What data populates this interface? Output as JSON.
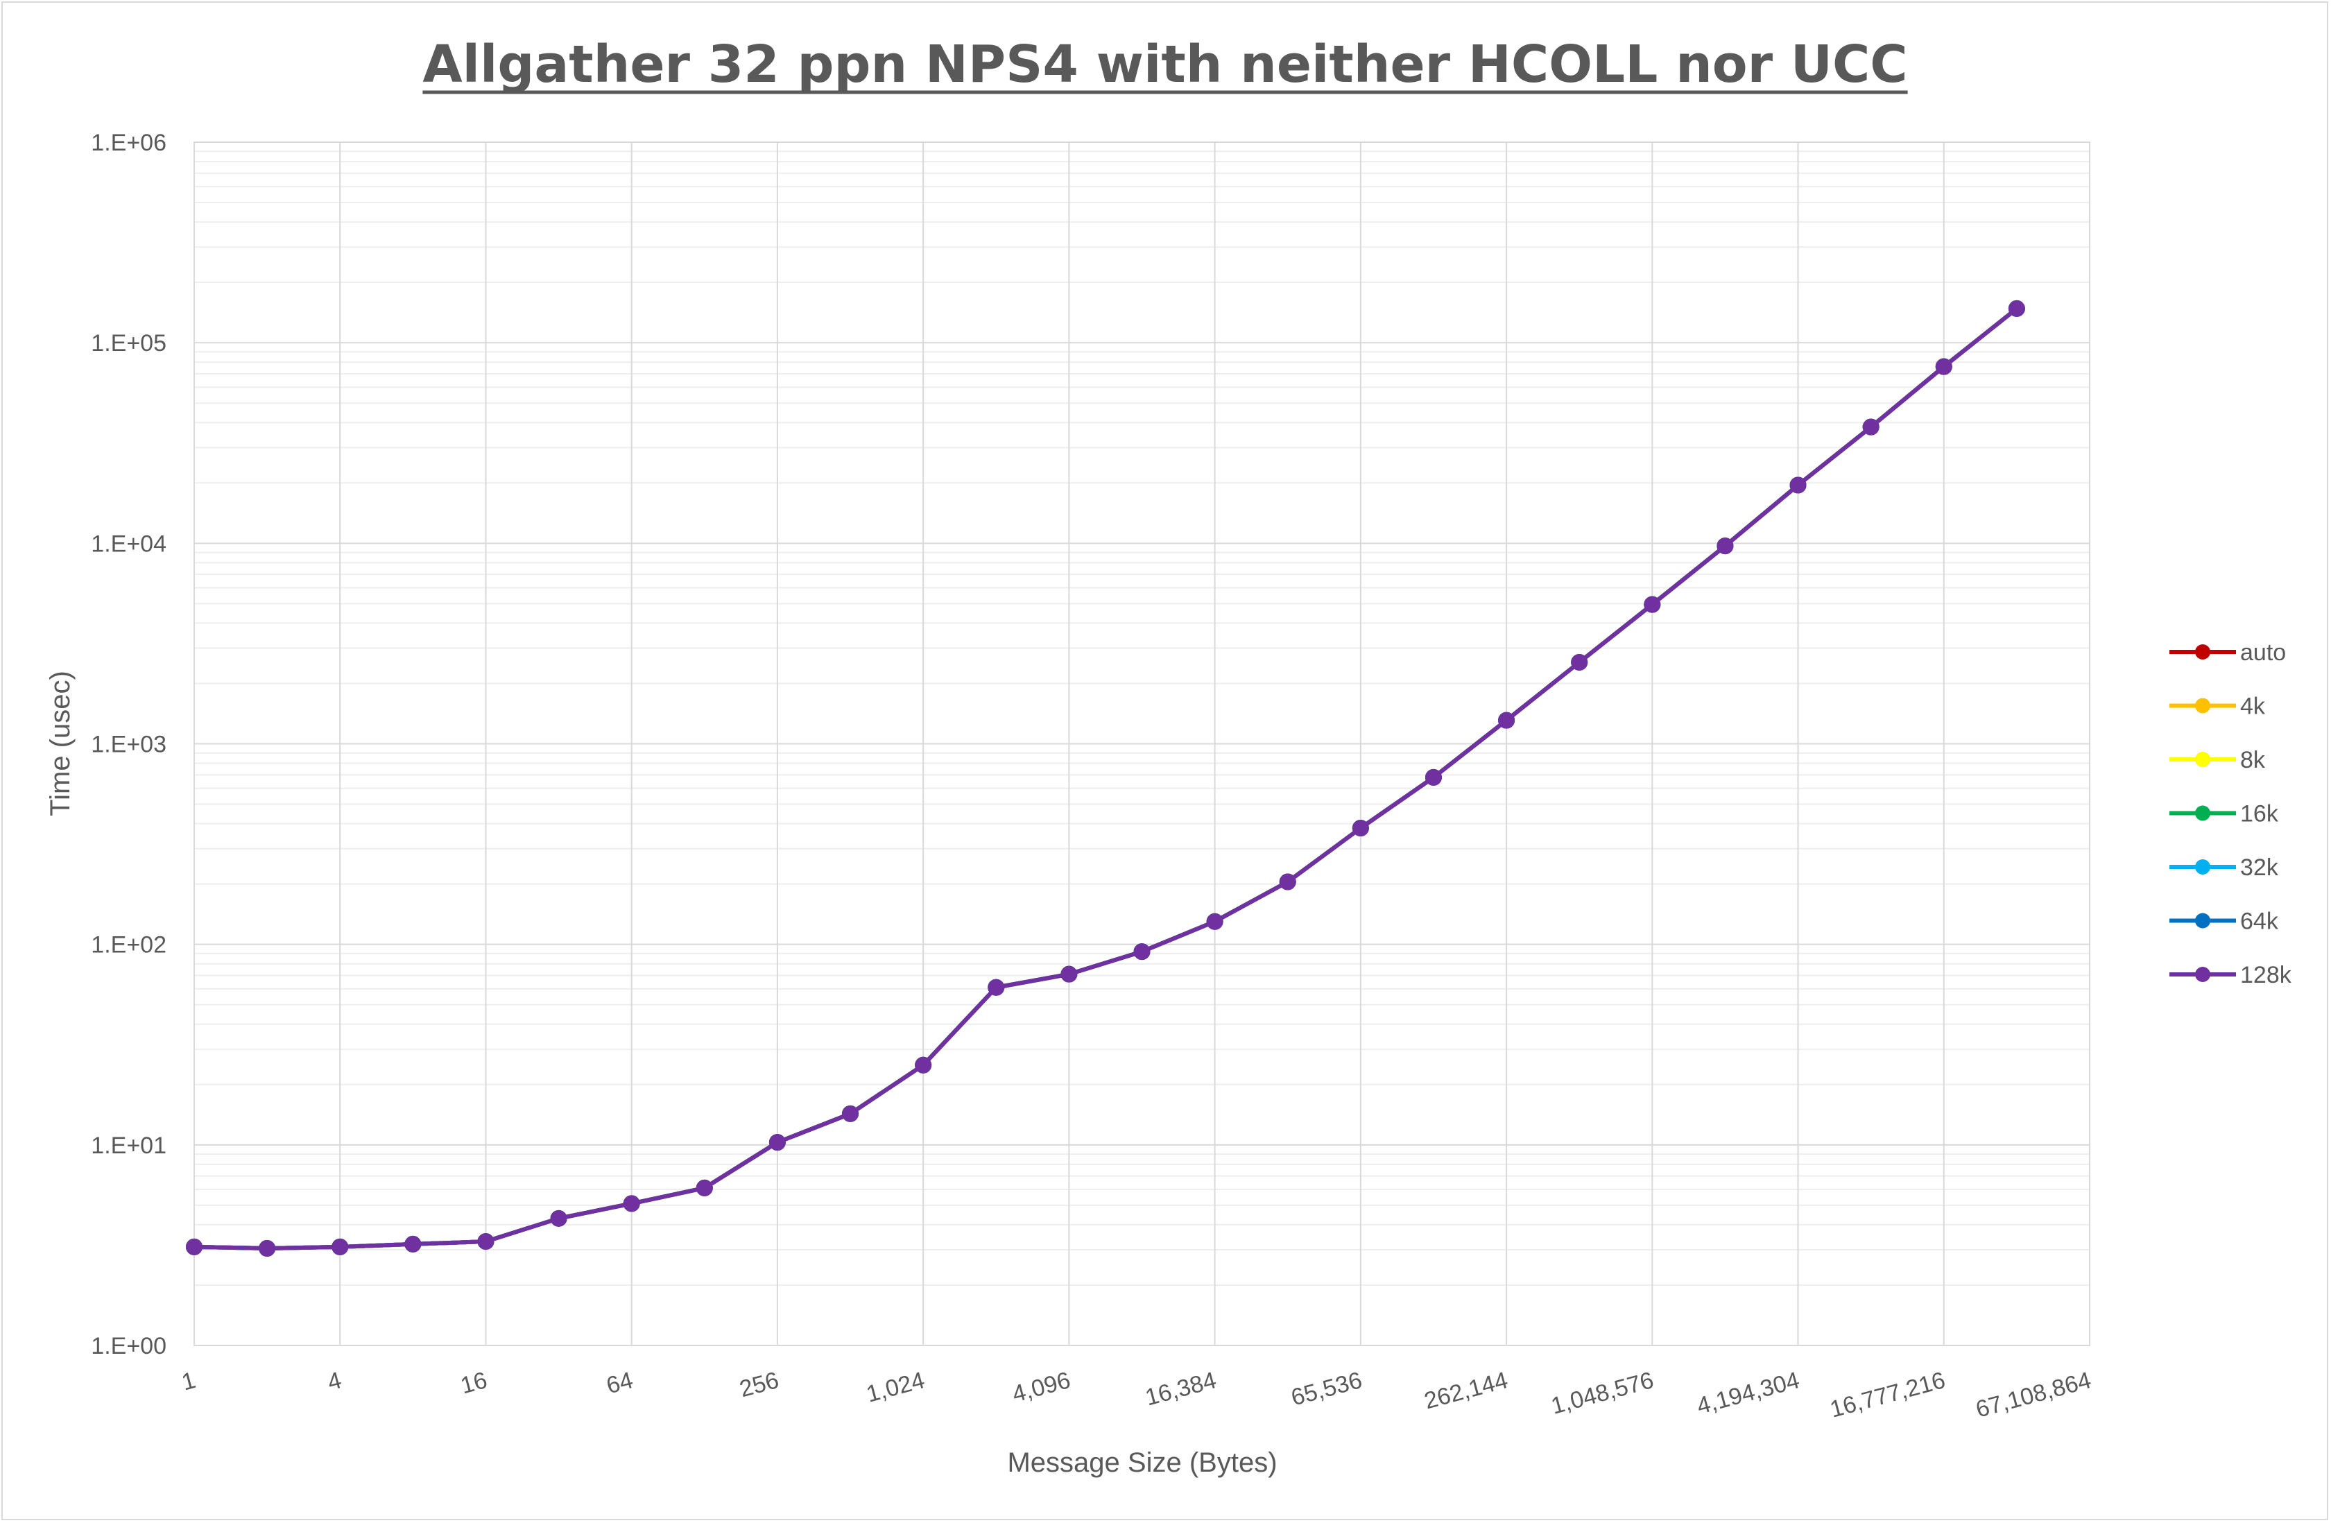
{
  "chart_data": {
    "type": "line",
    "title": "Allgather 32 ppn NPS4 with neither HCOLL nor UCC",
    "xlabel": "Message Size (Bytes)",
    "ylabel": "Time (usec)",
    "x_scale": "log2",
    "y_scale": "log10",
    "ylim": [
      1,
      1000000
    ],
    "grid": true,
    "legend_position": "right",
    "x": [
      1,
      2,
      4,
      8,
      16,
      32,
      64,
      128,
      256,
      512,
      1024,
      2048,
      4096,
      8192,
      16384,
      32768,
      65536,
      131072,
      262144,
      524288,
      1048576,
      2097152,
      4194304,
      8388608,
      16777216,
      33554432
    ],
    "x_tick_values": [
      1,
      4,
      16,
      64,
      256,
      1024,
      4096,
      16384,
      65536,
      262144,
      1048576,
      4194304,
      16777216,
      67108864
    ],
    "x_tick_labels": [
      "1",
      "4",
      "16",
      "64",
      "256",
      "1,024",
      "4,096",
      "16,384",
      "65,536",
      "262,144",
      "1,048,576",
      "4,194,304",
      "16,777,216",
      "67,108,864"
    ],
    "y_tick_values": [
      1,
      10,
      100,
      1000,
      10000,
      100000,
      1000000
    ],
    "y_tick_labels": [
      "1.E+00",
      "1.E+01",
      "1.E+02",
      "1.E+03",
      "1.E+04",
      "1.E+05",
      "1.E+06"
    ],
    "series": [
      {
        "name": "auto",
        "color": "#c00000",
        "values": [
          3.1,
          3.05,
          3.1,
          3.2,
          3.3,
          4.3,
          5.1,
          6.1,
          10.3,
          14.3,
          25,
          61,
          71,
          92,
          130,
          205,
          380,
          680,
          1310,
          2550,
          4950,
          9700,
          19500,
          38000,
          76000,
          148000
        ]
      },
      {
        "name": "4k",
        "color": "#ffc000",
        "values": [
          3.1,
          3.05,
          3.1,
          3.2,
          3.3,
          4.3,
          5.1,
          6.1,
          10.3,
          14.3,
          25,
          61,
          71,
          92,
          130,
          205,
          380,
          680,
          1310,
          2550,
          4950,
          9700,
          19500,
          38000,
          76000,
          148000
        ]
      },
      {
        "name": "8k",
        "color": "#ffff00",
        "values": [
          3.1,
          3.05,
          3.1,
          3.2,
          3.3,
          4.3,
          5.1,
          6.1,
          10.3,
          14.3,
          25,
          61,
          71,
          92,
          130,
          205,
          380,
          680,
          1310,
          2550,
          4950,
          9700,
          19500,
          38000,
          76000,
          148000
        ]
      },
      {
        "name": "16k",
        "color": "#00b050",
        "values": [
          3.1,
          3.05,
          3.1,
          3.2,
          3.3,
          4.3,
          5.1,
          6.1,
          10.3,
          14.3,
          25,
          61,
          71,
          92,
          130,
          205,
          380,
          680,
          1310,
          2550,
          4950,
          9700,
          19500,
          38000,
          76000,
          148000
        ]
      },
      {
        "name": "32k",
        "color": "#00b0f0",
        "values": [
          3.1,
          3.05,
          3.1,
          3.2,
          3.3,
          4.3,
          5.1,
          6.1,
          10.3,
          14.3,
          25,
          61,
          71,
          92,
          130,
          205,
          380,
          680,
          1310,
          2550,
          4950,
          9700,
          19500,
          38000,
          76000,
          148000
        ]
      },
      {
        "name": "64k",
        "color": "#0070c0",
        "values": [
          3.1,
          3.05,
          3.1,
          3.2,
          3.3,
          4.3,
          5.1,
          6.1,
          10.3,
          14.3,
          25,
          61,
          71,
          92,
          130,
          205,
          380,
          680,
          1310,
          2550,
          4950,
          9700,
          19500,
          38000,
          76000,
          148000
        ]
      },
      {
        "name": "128k",
        "color": "#7030a0",
        "values": [
          3.1,
          3.05,
          3.1,
          3.2,
          3.3,
          4.3,
          5.1,
          6.1,
          10.3,
          14.3,
          25,
          61,
          71,
          92,
          130,
          205,
          380,
          680,
          1310,
          2550,
          4950,
          9700,
          19500,
          38000,
          76000,
          148000
        ]
      }
    ]
  }
}
